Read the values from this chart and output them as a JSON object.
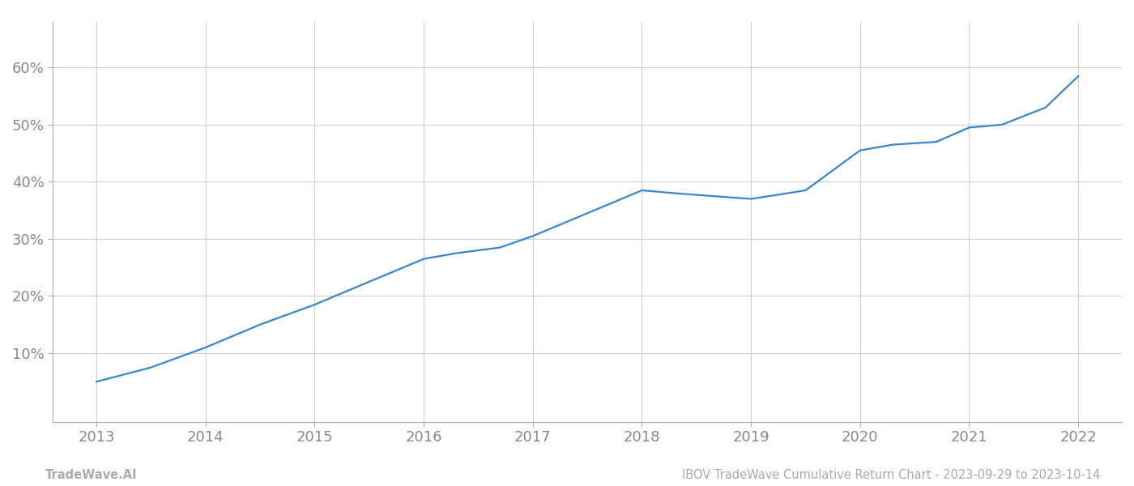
{
  "x_years": [
    2013,
    2013.5,
    2014,
    2014.5,
    2015,
    2015.5,
    2016,
    2016.3,
    2016.7,
    2017,
    2017.5,
    2018,
    2018.3,
    2019,
    2019.5,
    2020,
    2020.3,
    2020.7,
    2021,
    2021.3,
    2021.7,
    2022
  ],
  "y_values": [
    5.0,
    7.5,
    11.0,
    15.0,
    18.5,
    22.5,
    26.5,
    27.5,
    28.5,
    30.5,
    34.5,
    38.5,
    38.0,
    37.0,
    38.5,
    45.5,
    46.5,
    47.0,
    49.5,
    50.0,
    53.0,
    58.5
  ],
  "line_color": "#3a86c8",
  "line_width": 1.6,
  "background_color": "#ffffff",
  "grid_color": "#d0d0d0",
  "tick_label_color": "#888888",
  "ylim": [
    -2,
    68
  ],
  "yticks": [
    10,
    20,
    30,
    40,
    50,
    60
  ],
  "xlim": [
    2012.6,
    2022.4
  ],
  "xticks": [
    2013,
    2014,
    2015,
    2016,
    2017,
    2018,
    2019,
    2020,
    2021,
    2022
  ],
  "footer_left": "TradeWave.AI",
  "footer_right": "IBOV TradeWave Cumulative Return Chart - 2023-09-29 to 2023-10-14",
  "footer_color": "#aaaaaa",
  "footer_fontsize": 10.5,
  "spine_color": "#aaaaaa",
  "tick_fontsize": 13
}
